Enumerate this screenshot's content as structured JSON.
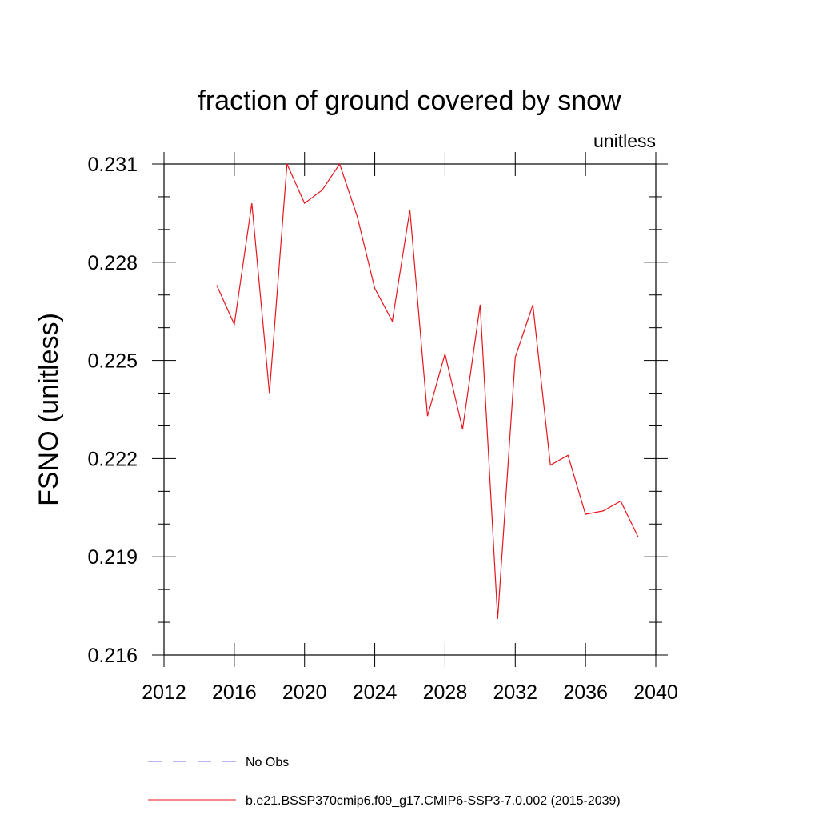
{
  "chart_data": {
    "type": "line",
    "title": "fraction of ground covered by snow",
    "units_label": "unitless",
    "ylabel": "FSNO  (unitless)",
    "xlabel": "",
    "xlim": [
      2012,
      2040
    ],
    "ylim": [
      0.216,
      0.231
    ],
    "x_ticks": [
      "2012",
      "2016",
      "2020",
      "2024",
      "2028",
      "2032",
      "2036",
      "2040"
    ],
    "y_ticks": [
      "0.216",
      "0.219",
      "0.222",
      "0.225",
      "0.228",
      "0.231"
    ],
    "series": [
      {
        "name": "b.e21.BSSP370cmip6.f09_g17.CMIP6-SSP3-7.0.002 (2015-2039)",
        "color": "#e8141c",
        "x": [
          2015,
          2016,
          2017,
          2018,
          2019,
          2020,
          2021,
          2022,
          2023,
          2024,
          2025,
          2026,
          2027,
          2028,
          2029,
          2030,
          2031,
          2032,
          2033,
          2034,
          2035,
          2036,
          2037,
          2038,
          2039
        ],
        "y": [
          0.2273,
          0.2261,
          0.2298,
          0.224,
          0.231,
          0.2298,
          0.2302,
          0.231,
          0.2294,
          0.2272,
          0.2262,
          0.2296,
          0.2233,
          0.2252,
          0.2229,
          0.2267,
          0.2171,
          0.2251,
          0.2267,
          0.2218,
          0.2221,
          0.2203,
          0.2204,
          0.2207,
          0.2196
        ]
      }
    ],
    "legend": [
      {
        "label": "No Obs",
        "style": "dashed",
        "color": "#7b68ee"
      },
      {
        "label": "b.e21.BSSP370cmip6.f09_g17.CMIP6-SSP3-7.0.002 (2015-2039)",
        "style": "solid",
        "color": "#e8141c"
      }
    ],
    "legend_position": "bottom",
    "grid": false
  }
}
